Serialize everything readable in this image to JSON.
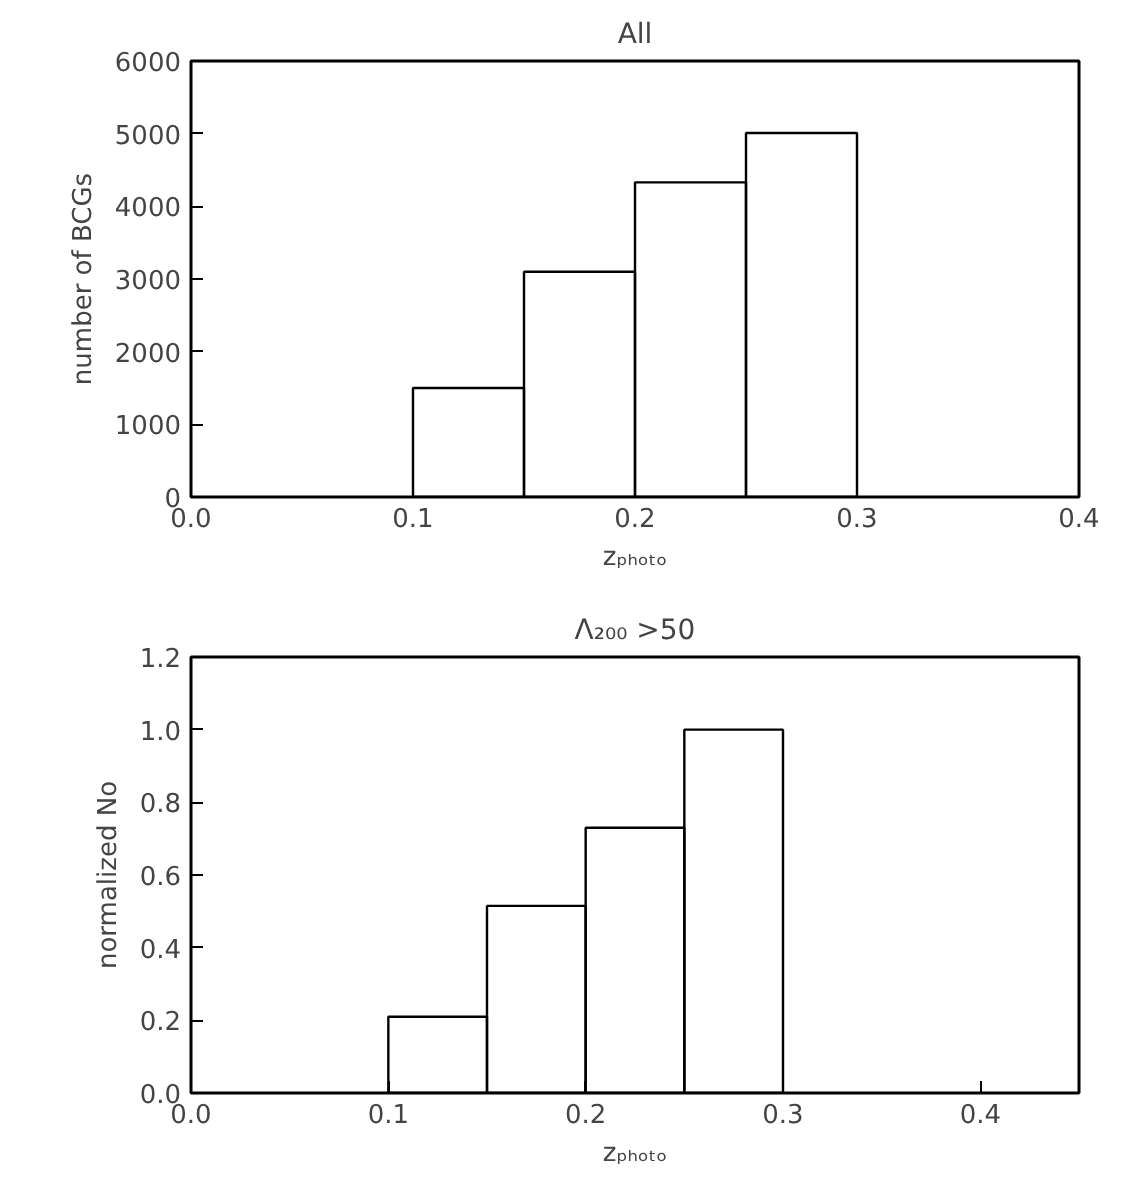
{
  "chart_data": [
    {
      "type": "histogram",
      "title": "All",
      "xlabel": "zₚₕₒₜₒ",
      "ylabel": "number of BCGs",
      "bins": [
        0.1,
        0.15,
        0.2,
        0.25,
        0.3
      ],
      "values": [
        1500,
        3100,
        4330,
        5010
      ],
      "color": "#000000",
      "xlim": [
        0,
        0.4
      ],
      "ylim": [
        0,
        6000
      ],
      "xticks": [
        {
          "value": 0,
          "label": "0.0"
        },
        0.1,
        0.2,
        0.3,
        0.4
      ],
      "yticks": [
        0,
        1000,
        2000,
        3000,
        4000,
        5000,
        6000
      ],
      "grid": false
    },
    {
      "type": "histogram",
      "title": "Λ₂₀₀ >50",
      "xlabel": "zₚₕₒₜₒ",
      "ylabel": "normalized No",
      "bins": [
        0.1,
        0.15,
        0.2,
        0.25,
        0.3
      ],
      "values": [
        0.21,
        0.515,
        0.73,
        1.0
      ],
      "color": "#000000",
      "xlim": [
        0,
        0.45
      ],
      "ylim": [
        0,
        1.2
      ],
      "xticks": [
        {
          "value": 0,
          "label": "0.0"
        },
        0.1,
        0.2,
        0.3,
        0.4
      ],
      "yticks": [
        {
          "value": 0,
          "label": "0.0"
        },
        0.2,
        0.4,
        0.6,
        0.8,
        {
          "value": 1,
          "label": "1.0"
        },
        1.2
      ],
      "grid": false
    }
  ]
}
